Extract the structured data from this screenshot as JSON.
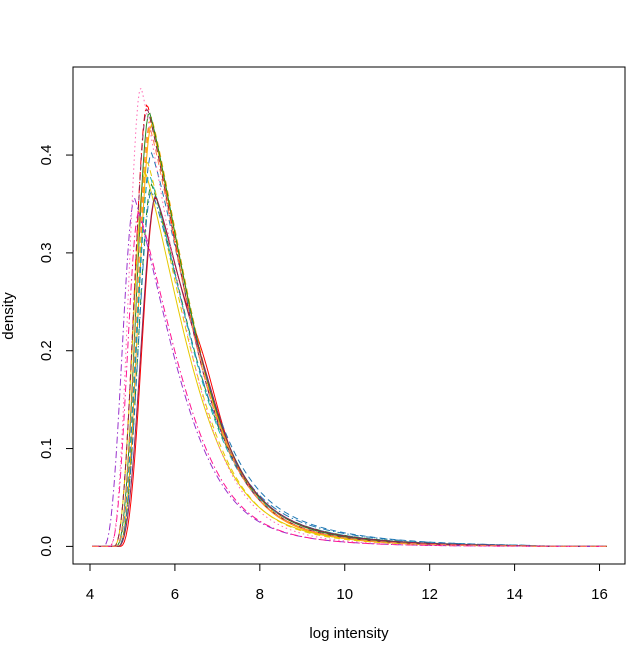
{
  "chart_data": {
    "type": "line",
    "title": "",
    "xlabel": "log intensity",
    "ylabel": "density",
    "xlim": [
      3.6,
      16.6
    ],
    "ylim": [
      -0.018,
      0.49
    ],
    "xticks": [
      4,
      6,
      8,
      10,
      12,
      14,
      16
    ],
    "yticks": [
      0.0,
      0.1,
      0.2,
      0.3,
      0.4
    ],
    "ytick_labels": [
      "0.0",
      "0.1",
      "0.2",
      "0.3",
      "0.4"
    ],
    "xtick_labels": [
      "4",
      "6",
      "8",
      "10",
      "12",
      "14",
      "16"
    ],
    "legend": "none",
    "grid": false,
    "series": [
      {
        "color": "#ff0000",
        "dash": "solid",
        "x0": 4.7,
        "peak_x": 5.55,
        "peak": 0.357,
        "shoulder": 0.022,
        "tail": 1.0
      },
      {
        "color": "#ff0000",
        "dash": "dashdot",
        "x0": 4.55,
        "peak_x": 5.35,
        "peak": 0.452,
        "shoulder": 0.0,
        "tail": 0.92
      },
      {
        "color": "#ffa500",
        "dash": "dashed",
        "x0": 4.6,
        "peak_x": 5.45,
        "peak": 0.438,
        "shoulder": 0.0,
        "tail": 0.9
      },
      {
        "color": "#ffa500",
        "dash": "solid",
        "x0": 4.65,
        "peak_x": 5.45,
        "peak": 0.431,
        "shoulder": 0.0,
        "tail": 0.88
      },
      {
        "color": "#e6c800",
        "dash": "dashed",
        "x0": 4.6,
        "peak_x": 5.35,
        "peak": 0.394,
        "shoulder": 0.0,
        "tail": 0.9
      },
      {
        "color": "#e6c800",
        "dash": "solid",
        "x0": 4.55,
        "peak_x": 5.3,
        "peak": 0.383,
        "shoulder": 0.0,
        "tail": 0.95
      },
      {
        "color": "#228b22",
        "dash": "solid",
        "x0": 4.6,
        "peak_x": 5.4,
        "peak": 0.444,
        "shoulder": 0.0,
        "tail": 0.95
      },
      {
        "color": "#228b22",
        "dash": "dashed",
        "x0": 4.65,
        "peak_x": 5.45,
        "peak": 0.37,
        "shoulder": 0.0,
        "tail": 1.05
      },
      {
        "color": "#1f78b4",
        "dash": "dashed",
        "x0": 4.6,
        "peak_x": 5.45,
        "peak": 0.402,
        "shoulder": 0.0,
        "tail": 1.1
      },
      {
        "color": "#1f78b4",
        "dash": "dashdot",
        "x0": 4.65,
        "peak_x": 5.45,
        "peak": 0.363,
        "shoulder": 0.0,
        "tail": 1.12
      },
      {
        "color": "#20b2aa",
        "dash": "dashed",
        "x0": 4.6,
        "peak_x": 5.4,
        "peak": 0.38,
        "shoulder": 0.0,
        "tail": 1.05
      },
      {
        "color": "#8b2252",
        "dash": "solid",
        "x0": 4.65,
        "peak_x": 5.55,
        "peak": 0.358,
        "shoulder": 0.012,
        "tail": 1.02
      },
      {
        "color": "#8b2252",
        "dash": "dashed",
        "x0": 4.55,
        "peak_x": 5.35,
        "peak": 0.448,
        "shoulder": 0.0,
        "tail": 0.93
      },
      {
        "color": "#9932cc",
        "dash": "dashdot",
        "x0": 4.3,
        "peak_x": 5.05,
        "peak": 0.356,
        "shoulder": 0.0,
        "tail": 0.86
      },
      {
        "color": "#ff1493",
        "dash": "dashdot",
        "x0": 4.45,
        "peak_x": 5.15,
        "peak": 0.342,
        "shoulder": 0.0,
        "tail": 0.85
      },
      {
        "color": "#ff69b4",
        "dash": "dotted",
        "x0": 4.45,
        "peak_x": 5.2,
        "peak": 0.47,
        "shoulder": 0.0,
        "tail": 0.82
      },
      {
        "color": "#ff7f50",
        "dash": "dashed",
        "x0": 4.6,
        "peak_x": 5.4,
        "peak": 0.43,
        "shoulder": 0.0,
        "tail": 0.92
      }
    ]
  }
}
